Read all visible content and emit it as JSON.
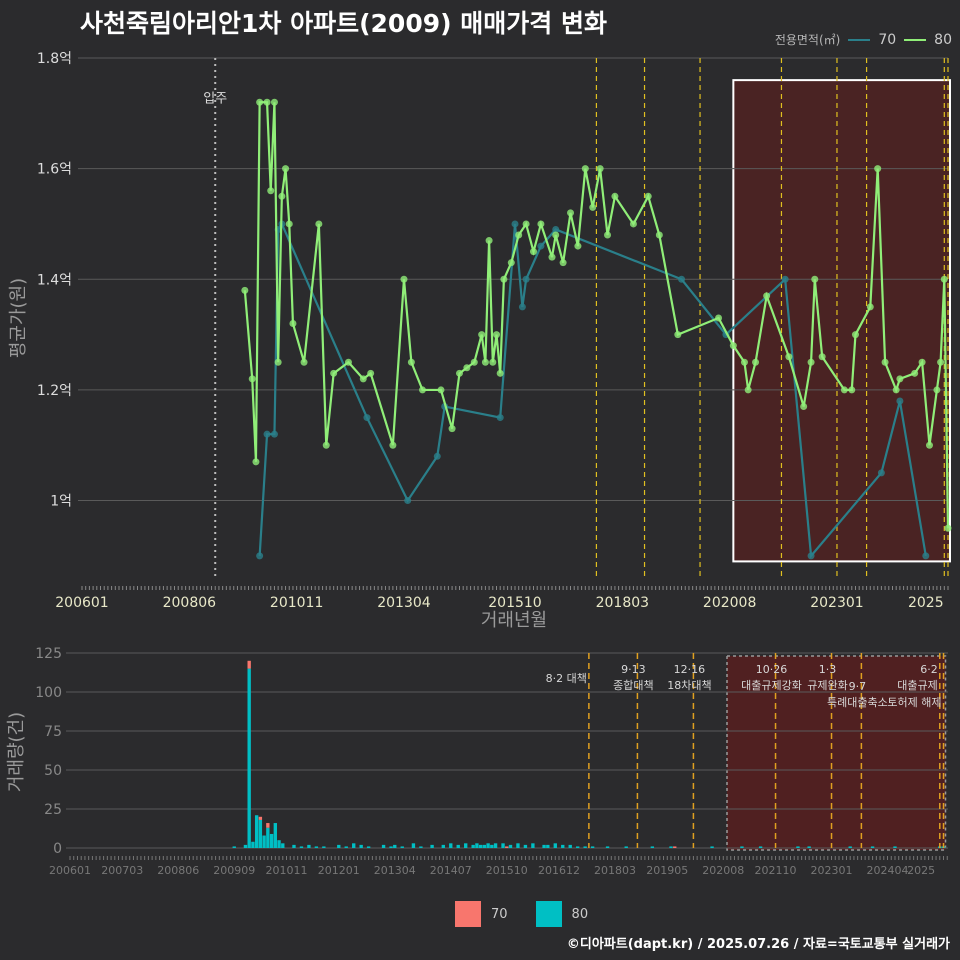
{
  "title": "사천죽림아리안1차 아파트(2009) 매매가격 변화",
  "footer": "©디아파트(dapt.kr) / 2025.07.26 / 자료=국토교통부 실거래가",
  "colors": {
    "background": "#2b2b2d",
    "grid": "#5a5a5a",
    "series70": "#2a7f8a",
    "series80": "#90ee78",
    "bar70": "#f8766d",
    "bar80": "#00bfc4",
    "policy_line": "#e0c020",
    "highlight_fill": "#5a1e1e",
    "move_in_line": "#bbbbbb"
  },
  "legend": {
    "title": "전용면적(㎡)",
    "items": [
      {
        "label": "70",
        "color": "#2a7f8a"
      },
      {
        "label": "80",
        "color": "#90ee78"
      }
    ]
  },
  "bottom_legend": {
    "items": [
      {
        "label": "70",
        "color": "#f8766d"
      },
      {
        "label": "80",
        "color": "#00bfc4"
      }
    ]
  },
  "chart_data": [
    {
      "type": "line",
      "xlabel": "거래년월",
      "ylabel": "평균가(원)",
      "x_ticks": [
        "200601",
        "200806",
        "201011",
        "201304",
        "201510",
        "201803",
        "202008",
        "202301",
        "2025"
      ],
      "y_ticks": [
        "1억",
        "1.2억",
        "1.4억",
        "1.6억",
        "1.8억"
      ],
      "ylim": [
        0.86,
        1.8
      ],
      "y_unit": "억",
      "annotations": [
        {
          "x": "2009-01",
          "label": "입주"
        }
      ],
      "policy_dates": [
        "2017-08",
        "2018-09",
        "2019-12",
        "2021-10",
        "2023-01",
        "2023-09",
        "2025-06",
        "2025-07"
      ],
      "highlight": {
        "from": "2020-09",
        "to": "2025-07"
      },
      "series": [
        {
          "name": "70",
          "points": [
            [
              "2010-01",
              0.9
            ],
            [
              "2010-03",
              1.12
            ],
            [
              "2010-05",
              1.12
            ],
            [
              "2010-06",
              1.49
            ],
            [
              "2010-07",
              1.5
            ],
            [
              "2012-06",
              1.15
            ],
            [
              "2013-05",
              1.0
            ],
            [
              "2014-01",
              1.08
            ],
            [
              "2014-03",
              1.17
            ],
            [
              "2015-06",
              1.15
            ],
            [
              "2015-10",
              1.5
            ],
            [
              "2015-12",
              1.35
            ],
            [
              "2016-01",
              1.4
            ],
            [
              "2016-05",
              1.46
            ],
            [
              "2016-09",
              1.49
            ],
            [
              "2019-07",
              1.4
            ],
            [
              "2020-07",
              1.3
            ],
            [
              "2021-11",
              1.4
            ],
            [
              "2022-06",
              0.9
            ],
            [
              "2024-01",
              1.05
            ],
            [
              "2024-06",
              1.18
            ],
            [
              "2025-01",
              0.9
            ]
          ]
        },
        {
          "name": "80",
          "points": [
            [
              "2009-09",
              1.38
            ],
            [
              "2009-11",
              1.22
            ],
            [
              "2009-12",
              1.07
            ],
            [
              "2010-01",
              1.72
            ],
            [
              "2010-03",
              1.72
            ],
            [
              "2010-04",
              1.56
            ],
            [
              "2010-05",
              1.72
            ],
            [
              "2010-06",
              1.25
            ],
            [
              "2010-07",
              1.55
            ],
            [
              "2010-08",
              1.6
            ],
            [
              "2010-09",
              1.5
            ],
            [
              "2010-10",
              1.32
            ],
            [
              "2011-01",
              1.25
            ],
            [
              "2011-05",
              1.5
            ],
            [
              "2011-07",
              1.1
            ],
            [
              "2011-09",
              1.23
            ],
            [
              "2012-01",
              1.25
            ],
            [
              "2012-05",
              1.22
            ],
            [
              "2012-07",
              1.23
            ],
            [
              "2013-01",
              1.1
            ],
            [
              "2013-04",
              1.4
            ],
            [
              "2013-06",
              1.25
            ],
            [
              "2013-09",
              1.2
            ],
            [
              "2014-02",
              1.2
            ],
            [
              "2014-05",
              1.13
            ],
            [
              "2014-07",
              1.23
            ],
            [
              "2014-09",
              1.24
            ],
            [
              "2014-11",
              1.25
            ],
            [
              "2015-01",
              1.3
            ],
            [
              "2015-02",
              1.25
            ],
            [
              "2015-03",
              1.47
            ],
            [
              "2015-04",
              1.25
            ],
            [
              "2015-05",
              1.3
            ],
            [
              "2015-06",
              1.23
            ],
            [
              "2015-07",
              1.4
            ],
            [
              "2015-09",
              1.43
            ],
            [
              "2015-11",
              1.48
            ],
            [
              "2016-01",
              1.5
            ],
            [
              "2016-03",
              1.45
            ],
            [
              "2016-05",
              1.5
            ],
            [
              "2016-08",
              1.44
            ],
            [
              "2016-09",
              1.48
            ],
            [
              "2016-11",
              1.43
            ],
            [
              "2017-01",
              1.52
            ],
            [
              "2017-03",
              1.46
            ],
            [
              "2017-05",
              1.6
            ],
            [
              "2017-07",
              1.53
            ],
            [
              "2017-09",
              1.6
            ],
            [
              "2017-11",
              1.48
            ],
            [
              "2018-01",
              1.55
            ],
            [
              "2018-06",
              1.5
            ],
            [
              "2018-10",
              1.55
            ],
            [
              "2019-01",
              1.48
            ],
            [
              "2019-06",
              1.3
            ],
            [
              "2020-05",
              1.33
            ],
            [
              "2020-09",
              1.28
            ],
            [
              "2020-12",
              1.25
            ],
            [
              "2021-01",
              1.2
            ],
            [
              "2021-03",
              1.25
            ],
            [
              "2021-06",
              1.37
            ],
            [
              "2021-12",
              1.26
            ],
            [
              "2022-04",
              1.17
            ],
            [
              "2022-06",
              1.25
            ],
            [
              "2022-07",
              1.4
            ],
            [
              "2022-09",
              1.26
            ],
            [
              "2023-03",
              1.2
            ],
            [
              "2023-05",
              1.2
            ],
            [
              "2023-06",
              1.3
            ],
            [
              "2023-10",
              1.35
            ],
            [
              "2023-12",
              1.6
            ],
            [
              "2024-02",
              1.25
            ],
            [
              "2024-05",
              1.2
            ],
            [
              "2024-06",
              1.22
            ],
            [
              "2024-10",
              1.23
            ],
            [
              "2024-12",
              1.25
            ],
            [
              "2025-02",
              1.1
            ],
            [
              "2025-04",
              1.2
            ],
            [
              "2025-05",
              1.25
            ],
            [
              "2025-06",
              1.4
            ],
            [
              "2025-07",
              0.95
            ]
          ]
        }
      ]
    },
    {
      "type": "bar",
      "xlabel": "",
      "ylabel": "거래량(건)",
      "x_ticks": [
        "200601",
        "200703",
        "200806",
        "200909",
        "201011",
        "201201",
        "201304",
        "201407",
        "201510",
        "201612",
        "201803",
        "201905",
        "202008",
        "202110",
        "202301",
        "202404",
        "2025"
      ],
      "y_ticks": [
        "0",
        "25",
        "50",
        "75",
        "100",
        "125"
      ],
      "ylim": [
        0,
        125
      ],
      "highlight": {
        "from": "2020-09",
        "to": "2025-07"
      },
      "policy_events": [
        {
          "date": "2017-08",
          "label": "8·2 대책"
        },
        {
          "date": "2018-09",
          "label": "9·13\n종합대책"
        },
        {
          "date": "2019-12",
          "label": "12·16\n18차대책"
        },
        {
          "date": "2021-10",
          "label": "10·26\n대출규제강화"
        },
        {
          "date": "2023-01",
          "label": "1·3\n규제완화"
        },
        {
          "date": "2023-09",
          "label": "9·7\n특례대출축소"
        },
        {
          "date": "2025-06",
          "label": "6·2\n대출규제"
        },
        {
          "date": "2025-07",
          "label": "토허제 해제"
        }
      ],
      "series": [
        {
          "name": "70",
          "values": [
            [
              "2010-01",
              5
            ],
            [
              "2010-04",
              2
            ],
            [
              "2010-06",
              3
            ],
            [
              "2015-10",
              1
            ],
            [
              "2019-07",
              1
            ]
          ]
        },
        {
          "name": "80",
          "values": [
            [
              "2009-09",
              1
            ],
            [
              "2009-12",
              2
            ],
            [
              "2010-01",
              115
            ],
            [
              "2010-02",
              4
            ],
            [
              "2010-03",
              21
            ],
            [
              "2010-04",
              18
            ],
            [
              "2010-05",
              8
            ],
            [
              "2010-06",
              13
            ],
            [
              "2010-07",
              9
            ],
            [
              "2010-08",
              16
            ],
            [
              "2010-09",
              5
            ],
            [
              "2010-10",
              3
            ],
            [
              "2011-01",
              2
            ],
            [
              "2011-03",
              1
            ],
            [
              "2011-05",
              2
            ],
            [
              "2011-07",
              1
            ],
            [
              "2011-09",
              1
            ],
            [
              "2012-01",
              2
            ],
            [
              "2012-03",
              1
            ],
            [
              "2012-05",
              3
            ],
            [
              "2012-07",
              2
            ],
            [
              "2012-09",
              1
            ],
            [
              "2013-01",
              2
            ],
            [
              "2013-03",
              1
            ],
            [
              "2013-04",
              2
            ],
            [
              "2013-06",
              1
            ],
            [
              "2013-09",
              3
            ],
            [
              "2013-11",
              1
            ],
            [
              "2014-02",
              2
            ],
            [
              "2014-05",
              2
            ],
            [
              "2014-07",
              3
            ],
            [
              "2014-09",
              2
            ],
            [
              "2014-11",
              3
            ],
            [
              "2015-01",
              2
            ],
            [
              "2015-02",
              3
            ],
            [
              "2015-03",
              2
            ],
            [
              "2015-04",
              2
            ],
            [
              "2015-05",
              3
            ],
            [
              "2015-06",
              2
            ],
            [
              "2015-07",
              3
            ],
            [
              "2015-09",
              3
            ],
            [
              "2015-11",
              2
            ],
            [
              "2016-01",
              3
            ],
            [
              "2016-03",
              2
            ],
            [
              "2016-05",
              3
            ],
            [
              "2016-08",
              2
            ],
            [
              "2016-09",
              2
            ],
            [
              "2016-11",
              3
            ],
            [
              "2017-01",
              2
            ],
            [
              "2017-03",
              2
            ],
            [
              "2017-05",
              1
            ],
            [
              "2017-07",
              1
            ],
            [
              "2017-09",
              1
            ],
            [
              "2018-01",
              1
            ],
            [
              "2018-06",
              1
            ],
            [
              "2019-01",
              1
            ],
            [
              "2019-06",
              1
            ],
            [
              "2020-05",
              1
            ],
            [
              "2021-01",
              1
            ],
            [
              "2021-06",
              1
            ],
            [
              "2022-04",
              1
            ],
            [
              "2022-07",
              1
            ],
            [
              "2023-06",
              1
            ],
            [
              "2023-12",
              1
            ],
            [
              "2024-06",
              1
            ],
            [
              "2025-06",
              1
            ],
            [
              "2025-07",
              1
            ]
          ]
        }
      ]
    }
  ]
}
